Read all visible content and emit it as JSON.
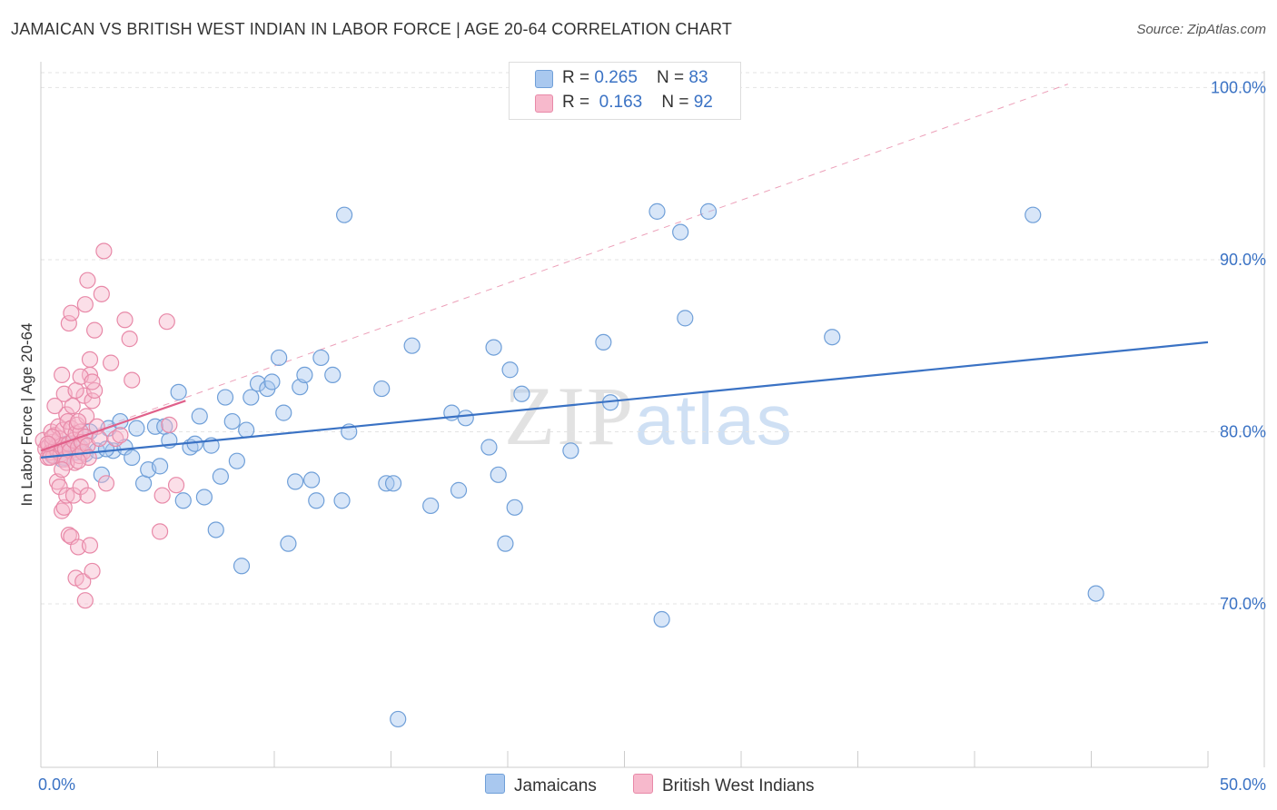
{
  "title": "JAMAICAN VS BRITISH WEST INDIAN IN LABOR FORCE | AGE 20-64 CORRELATION CHART",
  "source": "Source: ZipAtlas.com",
  "watermark": {
    "zip": "ZIP",
    "atlas": "atlas"
  },
  "legend": {
    "rows": [
      {
        "r_label": "R = ",
        "r_value": "0.265",
        "n_label": "N = ",
        "n_value": "83",
        "color": "#a9c8ef",
        "border": "#6f9fd8"
      },
      {
        "r_label": "R = ",
        "r_value": "0.163",
        "n_label": "N = ",
        "n_value": "92",
        "color": "#f7b9cc",
        "border": "#e889a8"
      }
    ]
  },
  "chart_data": {
    "type": "scatter",
    "title": "JAMAICAN VS BRITISH WEST INDIAN IN LABOR FORCE | AGE 20-64 CORRELATION CHART",
    "xlabel": "",
    "ylabel": "In Labor Force | Age 20-64",
    "xlim": [
      0,
      50
    ],
    "ylim": [
      60.5,
      101.5
    ],
    "x_tick_labels": [
      {
        "value": 0,
        "label": "0.0%"
      },
      {
        "value": 50,
        "label": "50.0%"
      }
    ],
    "y_tick_labels": [
      {
        "value": 70,
        "label": "70.0%"
      },
      {
        "value": 80,
        "label": "80.0%"
      },
      {
        "value": 90,
        "label": "90.0%"
      },
      {
        "value": 100,
        "label": "100.0%"
      }
    ],
    "series": [
      {
        "name": "Jamaicans",
        "color": "#a9c8ef",
        "stroke": "#6f9fd8",
        "trend": {
          "x": [
            0,
            50
          ],
          "y": [
            78.5,
            85.2
          ],
          "color": "#3a72c4"
        },
        "points": [
          [
            0.5,
            78.6
          ],
          [
            0.7,
            79.0
          ],
          [
            0.9,
            78.4
          ],
          [
            1.1,
            79.3
          ],
          [
            1.3,
            78.9
          ],
          [
            1.5,
            78.8
          ],
          [
            1.7,
            79.1
          ],
          [
            1.9,
            78.7
          ],
          [
            2.1,
            80.0
          ],
          [
            2.4,
            78.9
          ],
          [
            2.6,
            77.5
          ],
          [
            2.9,
            80.2
          ],
          [
            3.1,
            78.9
          ],
          [
            3.4,
            80.6
          ],
          [
            3.6,
            79.1
          ],
          [
            3.9,
            78.5
          ],
          [
            4.1,
            80.2
          ],
          [
            4.4,
            77.0
          ],
          [
            4.6,
            77.8
          ],
          [
            4.9,
            80.3
          ],
          [
            5.1,
            78.0
          ],
          [
            5.3,
            80.3
          ],
          [
            5.5,
            79.5
          ],
          [
            5.9,
            82.3
          ],
          [
            6.1,
            76.0
          ],
          [
            6.4,
            79.1
          ],
          [
            6.6,
            79.3
          ],
          [
            6.8,
            80.9
          ],
          [
            7.0,
            76.2
          ],
          [
            7.3,
            79.2
          ],
          [
            7.5,
            74.3
          ],
          [
            7.7,
            77.4
          ],
          [
            7.9,
            82.0
          ],
          [
            8.2,
            80.6
          ],
          [
            8.4,
            78.3
          ],
          [
            8.6,
            72.2
          ],
          [
            8.8,
            80.1
          ],
          [
            9.0,
            82.0
          ],
          [
            9.3,
            82.8
          ],
          [
            9.7,
            82.5
          ],
          [
            9.9,
            82.9
          ],
          [
            10.2,
            84.3
          ],
          [
            10.4,
            81.1
          ],
          [
            10.6,
            73.5
          ],
          [
            10.9,
            77.1
          ],
          [
            11.1,
            82.6
          ],
          [
            11.3,
            83.3
          ],
          [
            11.6,
            77.2
          ],
          [
            11.8,
            76.0
          ],
          [
            12.0,
            84.3
          ],
          [
            12.5,
            83.3
          ],
          [
            12.9,
            76.0
          ],
          [
            13.0,
            92.6
          ],
          [
            13.2,
            80.0
          ],
          [
            14.6,
            82.5
          ],
          [
            14.8,
            77.0
          ],
          [
            15.1,
            77.0
          ],
          [
            15.3,
            63.3
          ],
          [
            15.9,
            85.0
          ],
          [
            16.7,
            75.7
          ],
          [
            17.6,
            81.1
          ],
          [
            17.9,
            76.6
          ],
          [
            18.2,
            80.8
          ],
          [
            19.2,
            79.1
          ],
          [
            19.4,
            84.9
          ],
          [
            19.6,
            77.5
          ],
          [
            19.9,
            73.5
          ],
          [
            20.1,
            83.6
          ],
          [
            20.3,
            75.6
          ],
          [
            20.6,
            82.2
          ],
          [
            22.7,
            78.9
          ],
          [
            24.1,
            85.2
          ],
          [
            24.4,
            81.7
          ],
          [
            26.4,
            92.8
          ],
          [
            26.6,
            69.1
          ],
          [
            27.6,
            86.6
          ],
          [
            27.4,
            91.6
          ],
          [
            28.6,
            92.8
          ],
          [
            33.9,
            85.5
          ],
          [
            42.5,
            92.6
          ],
          [
            45.2,
            70.6
          ],
          [
            1.0,
            78.5
          ],
          [
            2.8,
            79.0
          ]
        ]
      },
      {
        "name": "British West Indians",
        "color": "#f7b9cc",
        "stroke": "#e889a8",
        "trend": {
          "x": [
            0,
            6.2
          ],
          "y": [
            78.9,
            81.8
          ],
          "color": "#e0608a"
        },
        "points": [
          [
            0.1,
            79.5
          ],
          [
            0.2,
            79.0
          ],
          [
            0.3,
            78.5
          ],
          [
            0.35,
            79.2
          ],
          [
            0.4,
            78.8
          ],
          [
            0.45,
            80.0
          ],
          [
            0.5,
            79.4
          ],
          [
            0.55,
            78.6
          ],
          [
            0.6,
            79.8
          ],
          [
            0.65,
            79.1
          ],
          [
            0.7,
            78.9
          ],
          [
            0.75,
            80.3
          ],
          [
            0.8,
            79.6
          ],
          [
            0.85,
            78.7
          ],
          [
            0.9,
            79.2
          ],
          [
            0.95,
            80.1
          ],
          [
            1.0,
            78.4
          ],
          [
            1.05,
            79.0
          ],
          [
            1.1,
            81.0
          ],
          [
            1.15,
            80.6
          ],
          [
            1.2,
            79.3
          ],
          [
            1.25,
            78.9
          ],
          [
            1.3,
            80.2
          ],
          [
            1.35,
            81.5
          ],
          [
            1.4,
            79.5
          ],
          [
            1.45,
            78.2
          ],
          [
            1.5,
            79.9
          ],
          [
            1.55,
            80.4
          ],
          [
            1.6,
            79.1
          ],
          [
            1.65,
            78.6
          ],
          [
            1.7,
            80.0
          ],
          [
            1.75,
            79.4
          ],
          [
            1.8,
            78.8
          ],
          [
            1.85,
            82.1
          ],
          [
            1.9,
            79.7
          ],
          [
            1.95,
            80.9
          ],
          [
            2.0,
            79.2
          ],
          [
            2.05,
            78.5
          ],
          [
            2.1,
            83.3
          ],
          [
            2.2,
            81.8
          ],
          [
            2.3,
            82.4
          ],
          [
            2.4,
            80.3
          ],
          [
            2.5,
            79.6
          ],
          [
            0.6,
            81.5
          ],
          [
            0.7,
            77.1
          ],
          [
            0.8,
            76.8
          ],
          [
            0.9,
            75.4
          ],
          [
            1.0,
            75.6
          ],
          [
            1.1,
            76.3
          ],
          [
            1.2,
            74.0
          ],
          [
            1.3,
            73.9
          ],
          [
            1.4,
            76.3
          ],
          [
            1.5,
            71.5
          ],
          [
            1.6,
            73.3
          ],
          [
            1.7,
            76.8
          ],
          [
            1.8,
            71.3
          ],
          [
            1.9,
            70.2
          ],
          [
            2.0,
            76.3
          ],
          [
            2.1,
            73.4
          ],
          [
            2.2,
            71.9
          ],
          [
            0.9,
            83.3
          ],
          [
            1.0,
            82.2
          ],
          [
            1.2,
            86.3
          ],
          [
            1.3,
            86.9
          ],
          [
            1.5,
            82.4
          ],
          [
            1.6,
            80.6
          ],
          [
            1.7,
            83.2
          ],
          [
            1.9,
            87.4
          ],
          [
            2.0,
            88.8
          ],
          [
            2.1,
            84.2
          ],
          [
            2.2,
            82.9
          ],
          [
            2.3,
            85.9
          ],
          [
            2.6,
            88.0
          ],
          [
            2.7,
            90.5
          ],
          [
            2.8,
            77.0
          ],
          [
            3.0,
            84.0
          ],
          [
            3.2,
            79.6
          ],
          [
            3.4,
            79.8
          ],
          [
            3.6,
            86.5
          ],
          [
            3.8,
            85.4
          ],
          [
            3.9,
            83.0
          ],
          [
            5.1,
            74.2
          ],
          [
            5.2,
            76.3
          ],
          [
            5.4,
            86.4
          ],
          [
            5.5,
            80.4
          ],
          [
            5.8,
            76.9
          ],
          [
            0.5,
            79.7
          ],
          [
            0.4,
            78.5
          ],
          [
            1.1,
            78.2
          ],
          [
            0.3,
            79.3
          ],
          [
            0.9,
            77.8
          ],
          [
            1.6,
            78.3
          ]
        ]
      }
    ],
    "dashed_reference": {
      "x": [
        0,
        44
      ],
      "y": [
        79.0,
        100.2
      ]
    }
  }
}
